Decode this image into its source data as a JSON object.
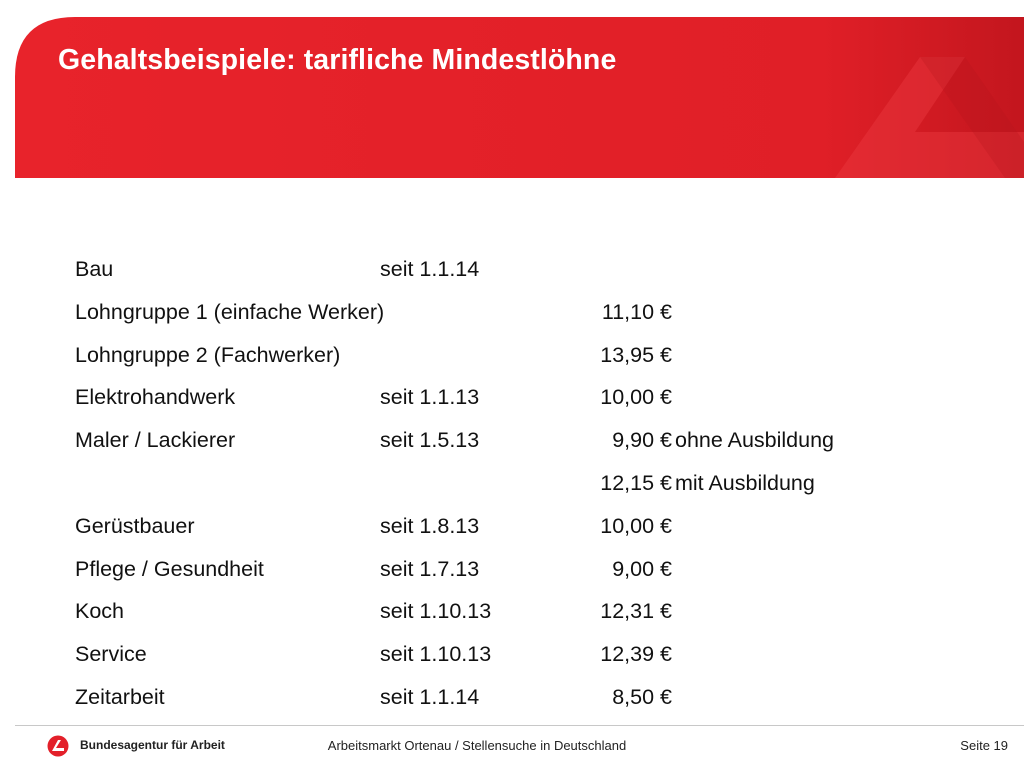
{
  "colors": {
    "brand_red": "#e3202a",
    "brand_red_dark": "#c4171f",
    "text": "#111111"
  },
  "slide": {
    "title": "Gehaltsbeispiele: tarifliche Mindestlöhne",
    "rows": [
      {
        "name": "Bau",
        "date": "seit 1.1.14",
        "amount": "",
        "note": ""
      },
      {
        "name": "Lohngruppe 1 (einfache Werker)",
        "date": "",
        "amount": "11,10 €",
        "note": ""
      },
      {
        "name": "Lohngruppe 2 (Fachwerker)",
        "date": "",
        "amount": "13,95 €",
        "note": ""
      },
      {
        "name": "Elektrohandwerk",
        "date": "seit 1.1.13",
        "amount": "10,00 €",
        "note": ""
      },
      {
        "name": "Maler / Lackierer",
        "date": "seit 1.5.13",
        "amount": "9,90 €",
        "note": "ohne Ausbildung"
      },
      {
        "name": "",
        "date": "",
        "amount": "12,15 €",
        "note": "mit Ausbildung"
      },
      {
        "name": "Gerüstbauer",
        "date": "seit 1.8.13",
        "amount": "10,00 €",
        "note": ""
      },
      {
        "name": "Pflege / Gesundheit",
        "date": "seit 1.7.13",
        "amount": "9,00 €",
        "note": ""
      },
      {
        "name": "Koch",
        "date": "seit 1.10.13",
        "amount": "12,31 €",
        "note": ""
      },
      {
        "name": "Service",
        "date": "seit 1.10.13",
        "amount": "12,39 €",
        "note": ""
      },
      {
        "name": "Zeitarbeit",
        "date": "seit 1.1.14",
        "amount": "8,50 €",
        "note": ""
      }
    ]
  },
  "footer": {
    "logo_icon": "bundesagentur-logo-icon",
    "org": "Bundesagentur für Arbeit",
    "center": "Arbeitsmarkt Ortenau / Stellensuche in Deutschland",
    "page": "Seite 19"
  }
}
